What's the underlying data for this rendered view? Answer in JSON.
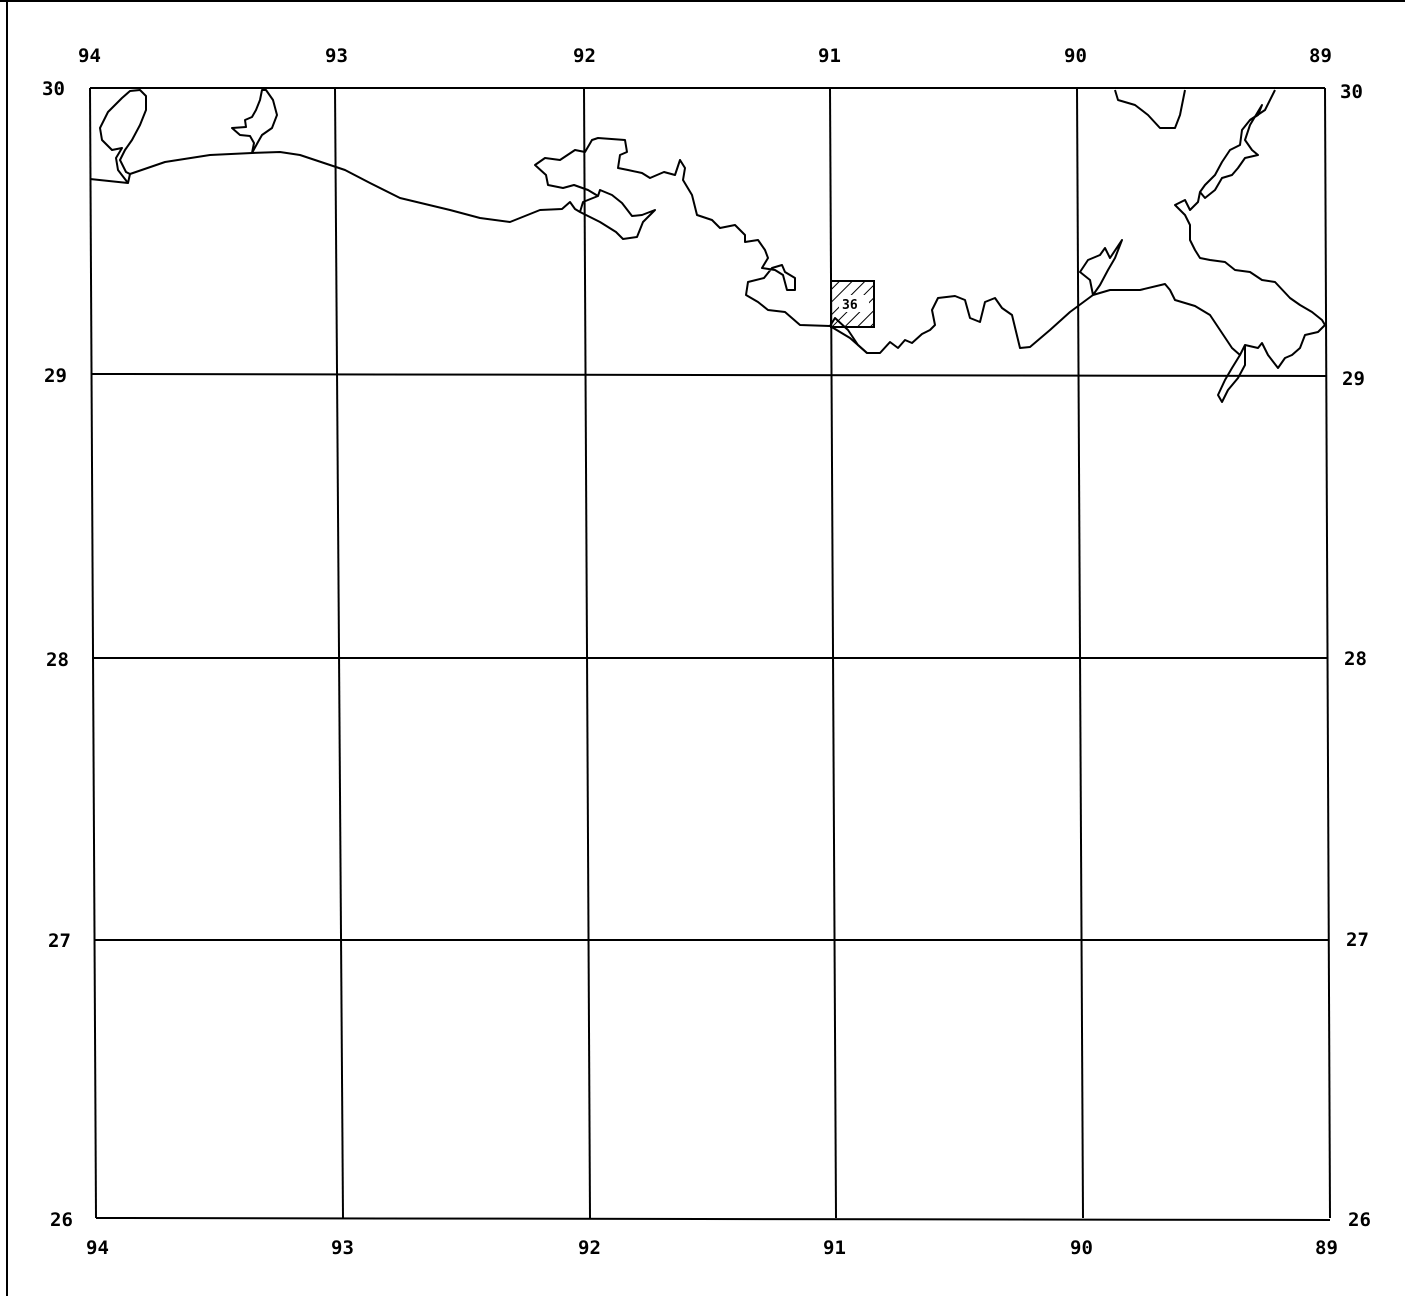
{
  "map": {
    "longitude_labels": [
      "94",
      "93",
      "92",
      "91",
      "90",
      "89"
    ],
    "latitude_labels": [
      "30",
      "29",
      "28",
      "27",
      "26"
    ],
    "area_marker": {
      "label": "36",
      "fill_pattern": "diagonal-hatch",
      "lon_range": [
        91.0,
        90.83
      ],
      "lat_range": [
        29.33,
        29.16
      ]
    },
    "colors": {
      "lines": "#000000",
      "background": "#ffffff"
    }
  }
}
